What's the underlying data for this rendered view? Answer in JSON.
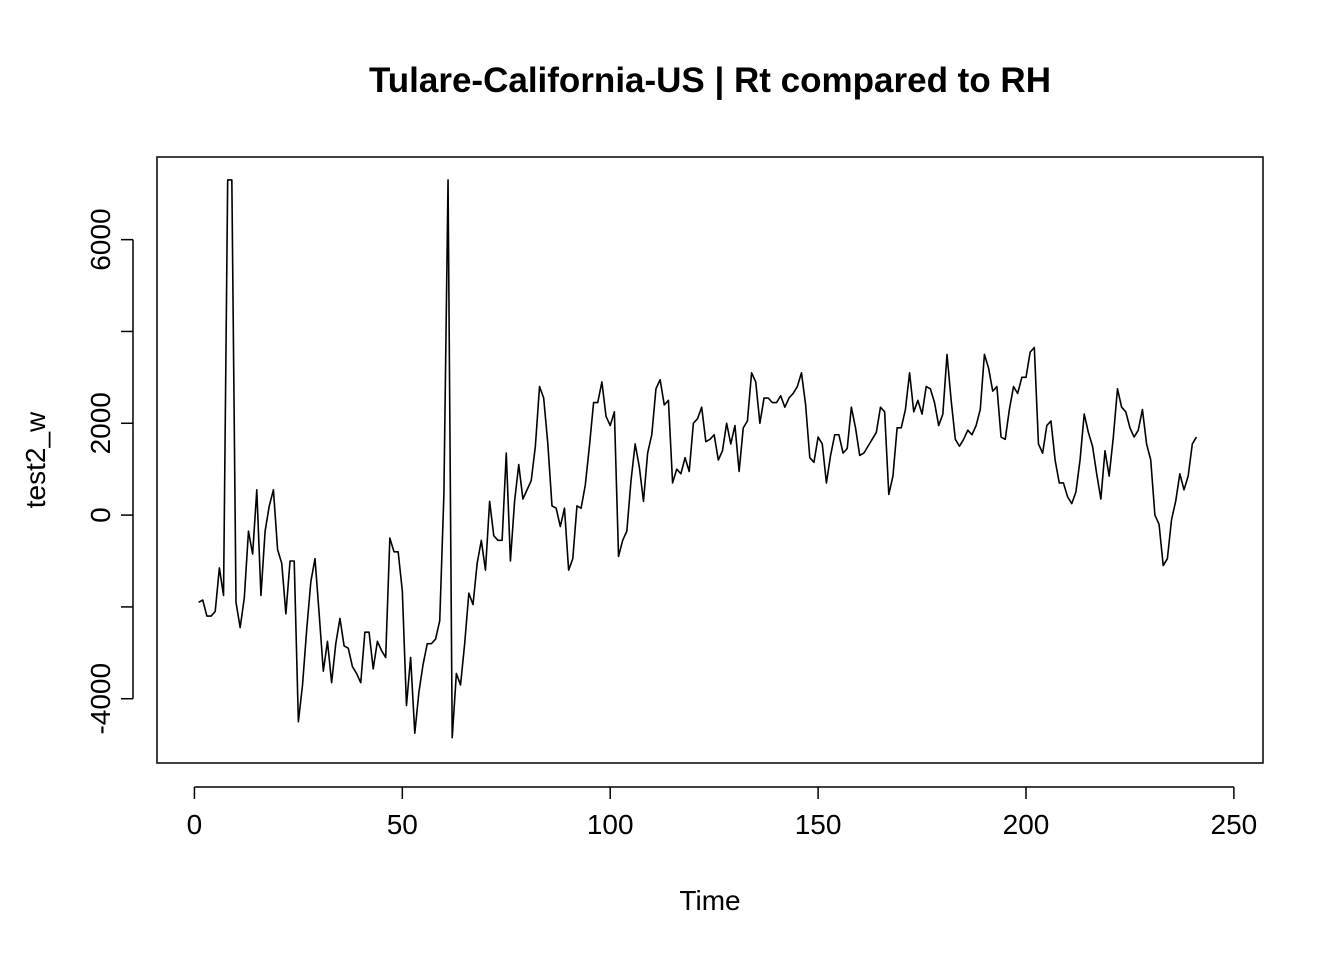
{
  "chart_data": {
    "type": "line",
    "title": "Tulare-California-US | Rt compared to RH",
    "xlabel": "Time",
    "ylabel": "test2_w",
    "xlim": [
      -9,
      257
    ],
    "ylim": [
      -5400,
      7800
    ],
    "x_ticks": [
      0,
      50,
      100,
      150,
      200,
      250
    ],
    "y_ticks": [
      -4000,
      0,
      2000,
      6000
    ],
    "y_minor_ticks": [
      -2000,
      4000
    ],
    "x_tick_labels": [
      "0",
      "50",
      "100",
      "150",
      "200",
      "250"
    ],
    "y_tick_labels": [
      "-4000",
      "0",
      "2000",
      "6000"
    ],
    "grid": false,
    "series": [
      {
        "name": "test2_w",
        "x_start": 1,
        "values": [
          -1900,
          -1850,
          -2200,
          -2200,
          -2100,
          -1150,
          -1750,
          7300,
          7300,
          -1900,
          -2450,
          -1800,
          -350,
          -850,
          550,
          -1750,
          -350,
          200,
          550,
          -750,
          -1050,
          -2150,
          -1000,
          -1000,
          -4500,
          -3700,
          -2500,
          -1450,
          -950,
          -2150,
          -3400,
          -2750,
          -3650,
          -2800,
          -2250,
          -2850,
          -2900,
          -3300,
          -3450,
          -3650,
          -2550,
          -2550,
          -3350,
          -2750,
          -2950,
          -3100,
          -500,
          -800,
          -800,
          -1650,
          -4150,
          -3100,
          -4750,
          -3850,
          -3250,
          -2800,
          -2800,
          -2700,
          -2300,
          450,
          7300,
          -4850,
          -3450,
          -3700,
          -2800,
          -1700,
          -1950,
          -1050,
          -550,
          -1200,
          300,
          -450,
          -550,
          -550,
          1350,
          -1000,
          300,
          1100,
          350,
          550,
          750,
          1500,
          2800,
          2550,
          1550,
          200,
          150,
          -250,
          150,
          -1200,
          -950,
          200,
          150,
          650,
          1500,
          2450,
          2450,
          2900,
          2150,
          1950,
          2250,
          -900,
          -550,
          -350,
          750,
          1550,
          1050,
          300,
          1350,
          1750,
          2750,
          2950,
          2400,
          2500,
          700,
          1000,
          900,
          1250,
          950,
          2000,
          2100,
          2350,
          1600,
          1650,
          1750,
          1200,
          1400,
          2000,
          1550,
          1950,
          950,
          1900,
          2050,
          3100,
          2900,
          2000,
          2550,
          2550,
          2450,
          2450,
          2600,
          2350,
          2550,
          2650,
          2800,
          3100,
          2400,
          1250,
          1150,
          1700,
          1550,
          700,
          1300,
          1750,
          1750,
          1350,
          1450,
          2350,
          1900,
          1300,
          1350,
          1500,
          1650,
          1800,
          2350,
          2250,
          450,
          850,
          1900,
          1900,
          2300,
          3100,
          2250,
          2500,
          2200,
          2800,
          2750,
          2450,
          1950,
          2200,
          3500,
          2500,
          1650,
          1500,
          1650,
          1850,
          1750,
          1950,
          2300,
          3500,
          3200,
          2700,
          2800,
          1700,
          1650,
          2300,
          2800,
          2650,
          3000,
          3000,
          3550,
          3650,
          1550,
          1350,
          1950,
          2050,
          1200,
          700,
          700,
          400,
          250,
          500,
          1200,
          2200,
          1800,
          1500,
          900,
          350,
          1400,
          850,
          1700,
          2750,
          2350,
          2250,
          1900,
          1700,
          1850,
          2300,
          1550,
          1200,
          0,
          -200,
          -1100,
          -950,
          -100,
          300,
          900,
          550,
          850,
          1550,
          1700
        ]
      }
    ]
  }
}
